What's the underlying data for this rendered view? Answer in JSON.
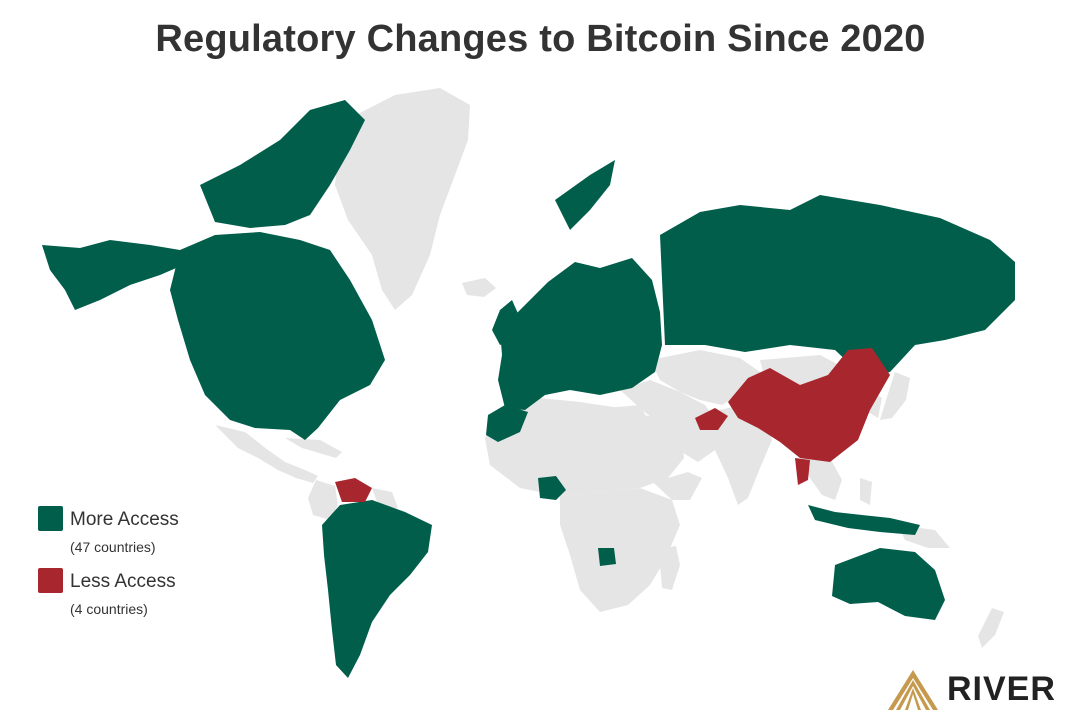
{
  "title": "Regulatory Changes to Bitcoin Since 2020",
  "colors": {
    "more_access": "#005e4b",
    "less_access": "#a8262e",
    "no_change": "#e5e5e5",
    "logo_gold": "#c69a4e"
  },
  "legend": [
    {
      "label": "More Access",
      "sub": "(47 countries)",
      "color": "#005e4b"
    },
    {
      "label": "Less Access",
      "sub": "(4 countries)",
      "color": "#a8262e"
    }
  ],
  "brand": "RIVER"
}
